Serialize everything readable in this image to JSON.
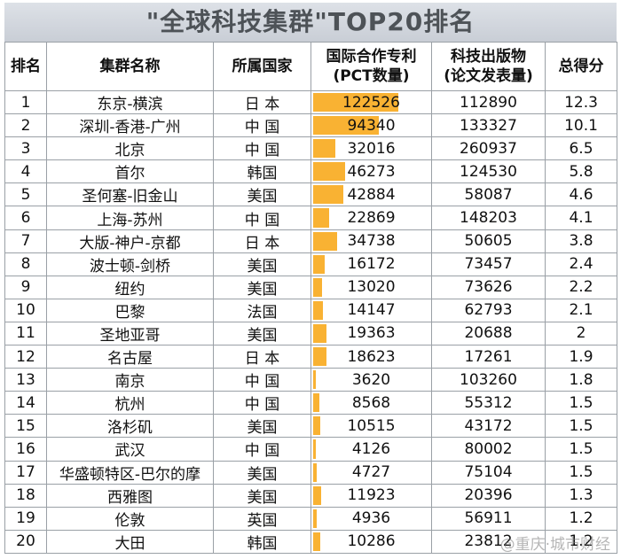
{
  "title": "\"全球科技集群\"TOP20排名",
  "headers": {
    "rank": "排名",
    "cluster": "集群名称",
    "country": "所属国家",
    "pct_line1": "国际合作专利",
    "pct_line2": "(PCT数量)",
    "pub_line1": "科技出版物",
    "pub_line2": "(论文发表量)",
    "score": "总得分"
  },
  "rows": [
    {
      "rank": "1",
      "cluster": "东京-横滨",
      "country": "日 本",
      "pct": 122526,
      "pub": "112890",
      "score": "12.3"
    },
    {
      "rank": "2",
      "cluster": "深圳-香港-广州",
      "country": "中 国",
      "pct": 94340,
      "pub": "133327",
      "score": "10.1"
    },
    {
      "rank": "3",
      "cluster": "北京",
      "country": "中 国",
      "pct": 32016,
      "pub": "260937",
      "score": "6.5"
    },
    {
      "rank": "4",
      "cluster": "首尔",
      "country": "韩国",
      "pct": 46273,
      "pub": "124530",
      "score": "5.8"
    },
    {
      "rank": "5",
      "cluster": "圣何塞-旧金山",
      "country": "美国",
      "pct": 42884,
      "pub": "58087",
      "score": "4.6"
    },
    {
      "rank": "6",
      "cluster": "上海-苏州",
      "country": "中 国",
      "pct": 22869,
      "pub": "148203",
      "score": "4.1"
    },
    {
      "rank": "7",
      "cluster": "大版-神户-京都",
      "country": "日 本",
      "pct": 34738,
      "pub": "50605",
      "score": "3.8"
    },
    {
      "rank": "8",
      "cluster": "波士顿-剑桥",
      "country": "美国",
      "pct": 16172,
      "pub": "73457",
      "score": "2.4"
    },
    {
      "rank": "9",
      "cluster": "纽约",
      "country": "美国",
      "pct": 13020,
      "pub": "73626",
      "score": "2.2"
    },
    {
      "rank": "10",
      "cluster": "巴黎",
      "country": "法国",
      "pct": 14147,
      "pub": "62793",
      "score": "2.1"
    },
    {
      "rank": "11",
      "cluster": "圣地亚哥",
      "country": "美国",
      "pct": 19363,
      "pub": "20688",
      "score": "2"
    },
    {
      "rank": "12",
      "cluster": "名古屋",
      "country": "日 本",
      "pct": 18623,
      "pub": "17261",
      "score": "1.9"
    },
    {
      "rank": "13",
      "cluster": "南京",
      "country": "中 国",
      "pct": 3620,
      "pub": "103260",
      "score": "1.8"
    },
    {
      "rank": "14",
      "cluster": "杭州",
      "country": "中 国",
      "pct": 8568,
      "pub": "55312",
      "score": "1.5"
    },
    {
      "rank": "15",
      "cluster": "洛杉矶",
      "country": "美国",
      "pct": 10515,
      "pub": "43172",
      "score": "1.5"
    },
    {
      "rank": "16",
      "cluster": "武汉",
      "country": "中 国",
      "pct": 4126,
      "pub": "80002",
      "score": "1.5"
    },
    {
      "rank": "17",
      "cluster": "华盛顿特区-巴尔的摩",
      "country": "美国",
      "pct": 4727,
      "pub": "75104",
      "score": "1.5"
    },
    {
      "rank": "18",
      "cluster": "西雅图",
      "country": "美国",
      "pct": 11923,
      "pub": "20396",
      "score": "1.3"
    },
    {
      "rank": "19",
      "cluster": "伦敦",
      "country": "英国",
      "pct": 4936,
      "pub": "56911",
      "score": "1.2"
    },
    {
      "rank": "20",
      "cluster": "大田",
      "country": "韩国",
      "pct": 10286,
      "pub": "23812",
      "score": "1.2"
    }
  ],
  "bar_color": "#f9b233",
  "watermark": "@重庆·城市财经"
}
